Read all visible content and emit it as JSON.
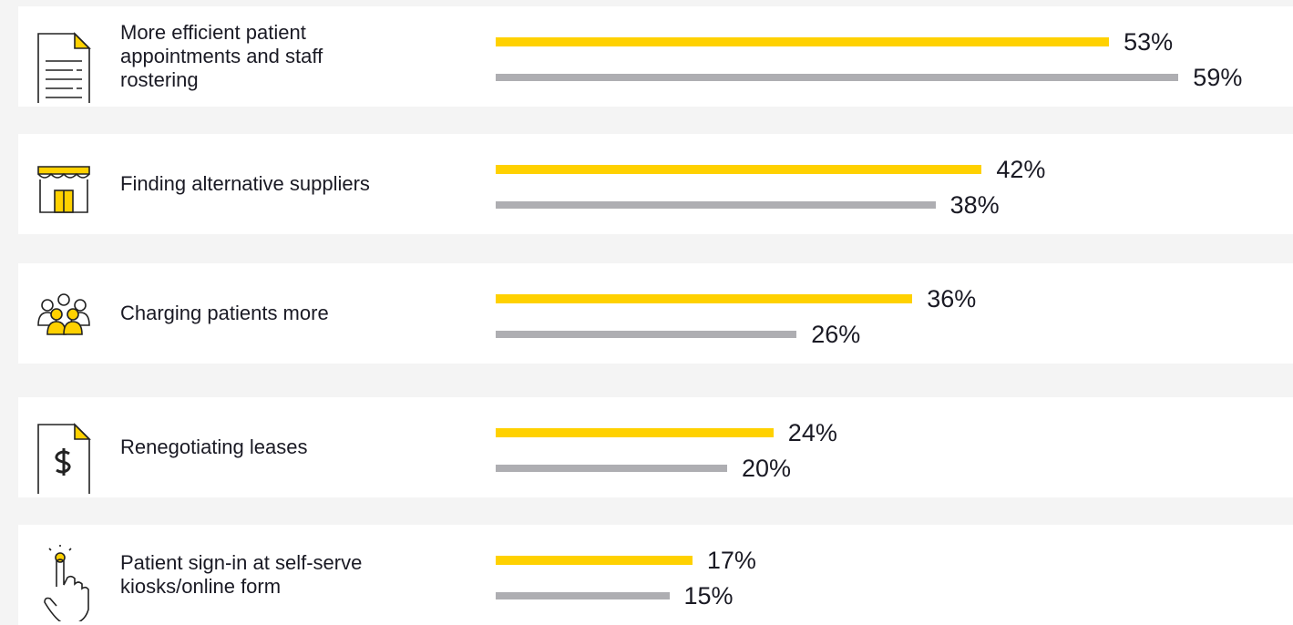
{
  "chart_data": {
    "type": "bar",
    "orientation": "horizontal",
    "categories": [
      "More efficient patient appointments and staff rostering",
      "Finding alternative suppliers",
      "Charging patients more",
      "Renegotiating leases",
      "Patient sign-in at self-serve kiosks/online form"
    ],
    "series": [
      {
        "color": "#ffd100",
        "values": [
          53,
          42,
          36,
          24,
          17
        ],
        "value_labels": [
          "53%",
          "42%",
          "36%",
          "24%",
          "17%"
        ]
      },
      {
        "color": "#aeaeb2",
        "values": [
          59,
          38,
          26,
          20,
          15
        ],
        "value_labels": [
          "59%",
          "38%",
          "26%",
          "20%",
          "15%"
        ]
      }
    ]
  }
}
